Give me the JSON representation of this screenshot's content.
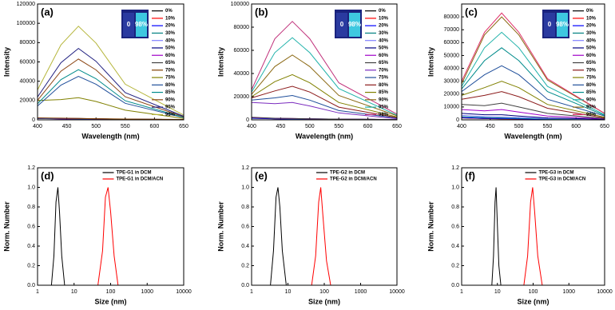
{
  "chart_data": [
    {
      "type": "line",
      "panel_label": "(a)",
      "x_label": "Wavelength (nm)",
      "y_label": "Intensity",
      "annotations": [
        "0",
        "98%"
      ],
      "x": [
        400,
        440,
        470,
        500,
        550,
        650
      ],
      "xlim": [
        400,
        650
      ],
      "xticks": [
        400,
        450,
        500,
        550,
        600,
        650
      ],
      "ylim": [
        0,
        120000
      ],
      "yticks": [
        0,
        20000,
        40000,
        60000,
        80000,
        100000,
        120000
      ],
      "legend": "right",
      "series": [
        {
          "name": "0%",
          "color": "#000000",
          "values": [
            1500,
            1200,
            1000,
            800,
            600,
            300
          ]
        },
        {
          "name": "10%",
          "color": "#ff0000",
          "values": [
            1400,
            1100,
            900,
            800,
            500,
            300
          ]
        },
        {
          "name": "20%",
          "color": "#0000ff",
          "values": [
            1300,
            1100,
            1000,
            700,
            500,
            200
          ]
        },
        {
          "name": "30%",
          "color": "#008080",
          "values": [
            1500,
            1300,
            1100,
            900,
            600,
            300
          ]
        },
        {
          "name": "40%",
          "color": "#8080ff",
          "values": [
            1600,
            1300,
            1200,
            900,
            600,
            300
          ]
        },
        {
          "name": "50%",
          "color": "#000080",
          "values": [
            1700,
            1400,
            1200,
            1000,
            700,
            300
          ]
        },
        {
          "name": "60%",
          "color": "#a000c8",
          "values": [
            1800,
            1500,
            1300,
            1000,
            700,
            300
          ]
        },
        {
          "name": "65%",
          "color": "#404040",
          "values": [
            1900,
            1600,
            1400,
            1100,
            700,
            300
          ]
        },
        {
          "name": "70%",
          "color": "#804000",
          "values": [
            2000,
            1700,
            1500,
            1200,
            800,
            400
          ]
        },
        {
          "name": "75%",
          "color": "#808000",
          "values": [
            20000,
            21000,
            23000,
            19000,
            10000,
            1500
          ]
        },
        {
          "name": "80%",
          "color": "#1f4e9a",
          "values": [
            14400,
            36000,
            45000,
            36900,
            17100,
            2300
          ]
        },
        {
          "name": "85%",
          "color": "#008b8b",
          "values": [
            16600,
            41600,
            52000,
            42600,
            19800,
            2600
          ]
        },
        {
          "name": "90%",
          "color": "#8b4513",
          "values": [
            20200,
            50400,
            63000,
            51700,
            23900,
            3200
          ]
        },
        {
          "name": "95%",
          "color": "#202080",
          "values": [
            23700,
            59200,
            74000,
            60700,
            28100,
            3700
          ]
        },
        {
          "name": "98%",
          "color": "#b5b53a",
          "values": [
            31000,
            77600,
            97000,
            79500,
            36900,
            4900
          ]
        }
      ]
    },
    {
      "type": "line",
      "panel_label": "(b)",
      "x_label": "Wavelength (nm)",
      "y_label": "Intensity",
      "annotations": [
        "0",
        "98%"
      ],
      "x": [
        400,
        440,
        470,
        500,
        550,
        650
      ],
      "xlim": [
        400,
        650
      ],
      "xticks": [
        400,
        450,
        500,
        550,
        600,
        650
      ],
      "ylim": [
        0,
        100000
      ],
      "yticks": [
        0,
        20000,
        40000,
        60000,
        80000,
        100000
      ],
      "legend": "right",
      "series": [
        {
          "name": "0%",
          "color": "#000000",
          "values": [
            1500,
            1000,
            800,
            700,
            500,
            300
          ]
        },
        {
          "name": "10%",
          "color": "#ff0000",
          "values": [
            1400,
            1000,
            800,
            600,
            500,
            300
          ]
        },
        {
          "name": "20%",
          "color": "#0000ff",
          "values": [
            1300,
            900,
            700,
            600,
            400,
            200
          ]
        },
        {
          "name": "30%",
          "color": "#008080",
          "values": [
            1600,
            1100,
            900,
            700,
            500,
            300
          ]
        },
        {
          "name": "40%",
          "color": "#8080ff",
          "values": [
            1700,
            1200,
            900,
            800,
            500,
            300
          ]
        },
        {
          "name": "50%",
          "color": "#000080",
          "values": [
            1800,
            1200,
            1000,
            800,
            600,
            300
          ]
        },
        {
          "name": "60%",
          "color": "#a000c8",
          "values": [
            2000,
            1300,
            1100,
            900,
            600,
            300
          ]
        },
        {
          "name": "65%",
          "color": "#404040",
          "values": [
            2200,
            1400,
            1200,
            900,
            600,
            300
          ]
        },
        {
          "name": "70%",
          "color": "#7b2cbf",
          "values": [
            15000,
            14000,
            15000,
            12000,
            6000,
            1000
          ]
        },
        {
          "name": "75%",
          "color": "#1f4e9a",
          "values": [
            17000,
            19000,
            21000,
            17000,
            8000,
            1500
          ]
        },
        {
          "name": "80%",
          "color": "#8b1a1a",
          "values": [
            19000,
            25000,
            29000,
            24000,
            11000,
            2000
          ]
        },
        {
          "name": "85%",
          "color": "#808000",
          "values": [
            20000,
            33000,
            39000,
            32000,
            15000,
            2500
          ]
        },
        {
          "name": "90%",
          "color": "#8b6914",
          "values": [
            22000,
            46000,
            56000,
            46000,
            21000,
            3500
          ]
        },
        {
          "name": "95%",
          "color": "#20b2aa",
          "values": [
            24000,
            58000,
            71000,
            58000,
            27000,
            4000
          ]
        },
        {
          "name": "98%",
          "color": "#c0307a",
          "values": [
            26000,
            70000,
            85000,
            70000,
            32000,
            5000
          ]
        }
      ]
    },
    {
      "type": "line",
      "panel_label": "(c)",
      "x_label": "Wavelength (nm)",
      "y_label": "Intensity",
      "annotations": [
        "0",
        "98%"
      ],
      "x": [
        400,
        440,
        470,
        500,
        550,
        650
      ],
      "xlim": [
        400,
        650
      ],
      "xticks": [
        400,
        450,
        500,
        550,
        600,
        650
      ],
      "ylim": [
        0,
        90000
      ],
      "yticks": [
        0,
        10000,
        20000,
        30000,
        40000,
        50000,
        60000,
        70000,
        80000
      ],
      "legend": "right",
      "series": [
        {
          "name": "0%",
          "color": "#000000",
          "values": [
            1500,
            1000,
            800,
            700,
            500,
            300
          ]
        },
        {
          "name": "10%",
          "color": "#ff0000",
          "values": [
            1600,
            1100,
            900,
            700,
            500,
            300
          ]
        },
        {
          "name": "20%",
          "color": "#0000ff",
          "values": [
            1800,
            1200,
            1000,
            800,
            500,
            300
          ]
        },
        {
          "name": "30%",
          "color": "#008080",
          "values": [
            2500,
            1800,
            1500,
            1200,
            700,
            300
          ]
        },
        {
          "name": "40%",
          "color": "#8080ff",
          "values": [
            3500,
            2500,
            2200,
            1800,
            1000,
            400
          ]
        },
        {
          "name": "50%",
          "color": "#000080",
          "values": [
            5000,
            4000,
            4000,
            3000,
            1500,
            500
          ]
        },
        {
          "name": "60%",
          "color": "#a000c8",
          "values": [
            8000,
            7000,
            8000,
            6000,
            3000,
            800
          ]
        },
        {
          "name": "65%",
          "color": "#404040",
          "values": [
            12000,
            11000,
            13000,
            10000,
            5000,
            1000
          ]
        },
        {
          "name": "70%",
          "color": "#8b1a1a",
          "values": [
            16000,
            19000,
            22000,
            18000,
            9000,
            1500
          ]
        },
        {
          "name": "75%",
          "color": "#808000",
          "values": [
            19000,
            25000,
            30000,
            25000,
            12000,
            2000
          ]
        },
        {
          "name": "80%",
          "color": "#1f4e9a",
          "values": [
            22000,
            35000,
            42000,
            35000,
            16000,
            3000
          ]
        },
        {
          "name": "85%",
          "color": "#008b8b",
          "values": [
            24000,
            46000,
            56000,
            46000,
            22000,
            3500
          ]
        },
        {
          "name": "90%",
          "color": "#20b2aa",
          "values": [
            26000,
            56000,
            68000,
            56000,
            26000,
            4000
          ]
        },
        {
          "name": "95%",
          "color": "#8b6914",
          "values": [
            28000,
            66000,
            80000,
            66000,
            31000,
            5000
          ]
        },
        {
          "name": "98%",
          "color": "#e0306a",
          "values": [
            30000,
            68000,
            83000,
            68000,
            32000,
            5000
          ]
        }
      ]
    },
    {
      "type": "line",
      "panel_label": "(d)",
      "x_label": "Size (nm)",
      "y_label": "Norm. Number",
      "xlog": true,
      "xlim": [
        1,
        10000
      ],
      "xticks": [
        1,
        10,
        100,
        1000,
        10000
      ],
      "ylim": [
        0,
        1.2
      ],
      "yticks": [
        {
          "value": 0,
          "label": "0.0"
        },
        0.2,
        0.4,
        0.6,
        0.8,
        {
          "value": 1,
          "label": "1.0"
        },
        1.2
      ],
      "legend": "top",
      "series": [
        {
          "name": "TPE-G1 in DCM",
          "color": "#000000",
          "x": [
            2.4,
            2.8,
            3.2,
            3.6,
            4.0,
            4.6,
            5.5
          ],
          "values": [
            0,
            0.3,
            0.85,
            1.0,
            0.75,
            0.3,
            0
          ]
        },
        {
          "name": "TPE-G1 in DCM/ACN",
          "color": "#ff0000",
          "x": [
            45,
            60,
            72,
            85,
            100,
            125,
            160
          ],
          "values": [
            0,
            0.35,
            0.9,
            1.0,
            0.75,
            0.3,
            0
          ]
        }
      ]
    },
    {
      "type": "line",
      "panel_label": "(e)",
      "x_label": "Size (nm)",
      "y_label": "Norm. Number",
      "xlog": true,
      "xlim": [
        1,
        10000
      ],
      "xticks": [
        1,
        10,
        100,
        1000,
        10000
      ],
      "ylim": [
        0,
        1.2
      ],
      "yticks": [
        {
          "value": 0,
          "label": "0.0"
        },
        0.2,
        0.4,
        0.6,
        0.8,
        {
          "value": 1,
          "label": "1.0"
        },
        1.2
      ],
      "legend": "top",
      "series": [
        {
          "name": "TPE-G2 in DCM",
          "color": "#000000",
          "x": [
            3.3,
            4,
            4.7,
            5.3,
            6,
            7,
            9
          ],
          "values": [
            0,
            0.35,
            0.9,
            1.0,
            0.8,
            0.35,
            0
          ]
        },
        {
          "name": "TPE-G2 in DCM/ACN",
          "color": "#ff0000",
          "x": [
            45,
            58,
            70,
            80,
            92,
            115,
            150
          ],
          "values": [
            0,
            0.3,
            0.85,
            1.0,
            0.7,
            0.25,
            0
          ]
        }
      ]
    },
    {
      "type": "line",
      "panel_label": "(f)",
      "x_label": "Size (nm)",
      "y_label": "Norm. Number",
      "xlog": true,
      "xlim": [
        1,
        10000
      ],
      "xticks": [
        1,
        10,
        100,
        1000,
        10000
      ],
      "ylim": [
        0,
        1.2
      ],
      "yticks": [
        {
          "value": 0,
          "label": "0.0"
        },
        0.2,
        0.4,
        0.6,
        0.8,
        {
          "value": 1,
          "label": "1.0"
        },
        1.2
      ],
      "legend": "top",
      "series": [
        {
          "name": "TPE-G3 in DCM",
          "color": "#000000",
          "x": [
            7,
            7.8,
            8.6,
            9.2,
            10,
            11,
            12.5
          ],
          "values": [
            0,
            0.3,
            0.85,
            1.0,
            0.6,
            0.2,
            0
          ]
        },
        {
          "name": "TPE-G3 in DCM/ACN",
          "color": "#ff0000",
          "x": [
            55,
            70,
            85,
            97,
            110,
            135,
            180
          ],
          "values": [
            0,
            0.3,
            0.85,
            1.0,
            0.75,
            0.3,
            0
          ]
        }
      ]
    }
  ]
}
